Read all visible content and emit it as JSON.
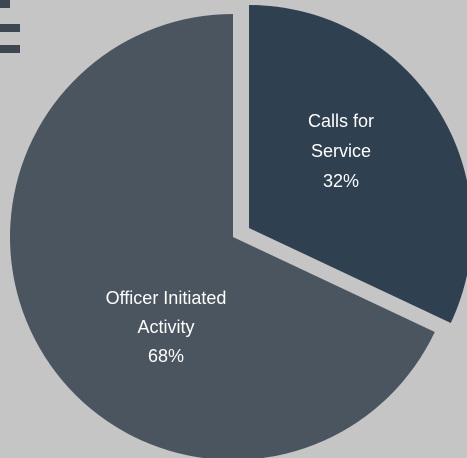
{
  "chart_data": {
    "type": "pie",
    "title": "",
    "slices": [
      {
        "label_lines": [
          "Calls for",
          "Service"
        ],
        "percent_label": "32%",
        "value": 32,
        "color": "#2f4050"
      },
      {
        "label_lines": [
          "Officer Initiated",
          "Activity"
        ],
        "percent_label": "68%",
        "value": 68,
        "color": "#4a5560"
      }
    ],
    "legend": "none",
    "decoration_color": "#3d4752"
  }
}
